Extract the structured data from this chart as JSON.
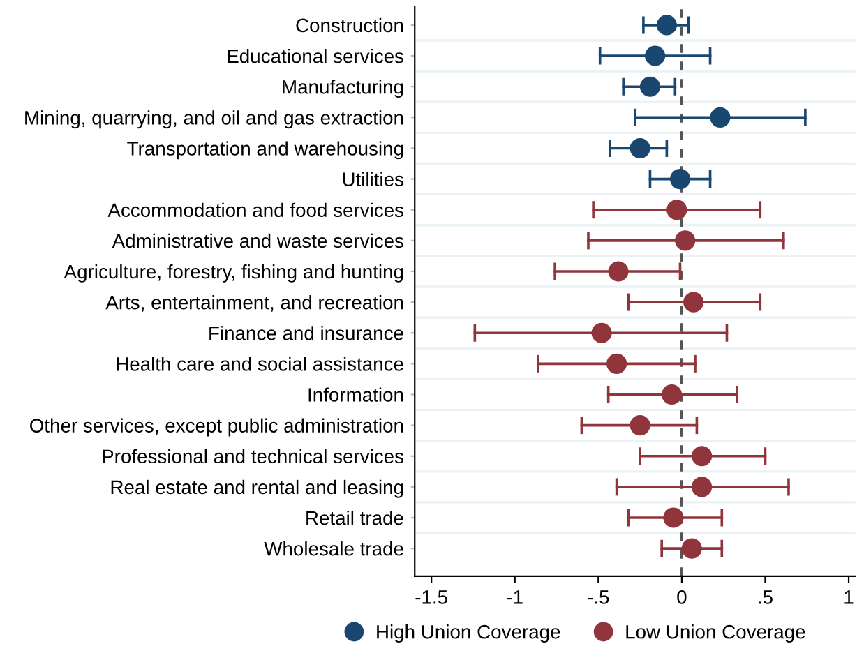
{
  "chart_data": {
    "type": "scatter",
    "orientation": "horizontal",
    "categories": [
      "Construction",
      "Educational services",
      "Manufacturing",
      "Mining, quarrying, and oil and gas extraction",
      "Transportation and warehousing",
      "Utilities",
      "Accommodation and food services",
      "Administrative and waste services",
      "Agriculture, forestry, fishing and hunting",
      "Arts, entertainment, and recreation",
      "Finance and insurance",
      "Health care and social assistance",
      "Information",
      "Other services, except public administration",
      "Professional and technical services",
      "Real estate and rental and leasing",
      "Retail trade",
      "Wholesale trade"
    ],
    "series": [
      {
        "name": "High Union Coverage",
        "color": "#1a476f",
        "values": [
          -0.09,
          -0.16,
          -0.19,
          0.23,
          -0.25,
          -0.01,
          null,
          null,
          null,
          null,
          null,
          null,
          null,
          null,
          null,
          null,
          null,
          null
        ],
        "errors": [
          [
            -0.23,
            0.04
          ],
          [
            -0.49,
            0.17
          ],
          [
            -0.35,
            -0.04
          ],
          [
            -0.28,
            0.74
          ],
          [
            -0.43,
            -0.09
          ],
          [
            -0.19,
            0.17
          ],
          null,
          null,
          null,
          null,
          null,
          null,
          null,
          null,
          null,
          null,
          null,
          null
        ]
      },
      {
        "name": "Low Union Coverage",
        "color": "#90353b",
        "values": [
          null,
          null,
          null,
          null,
          null,
          null,
          -0.03,
          0.02,
          -0.38,
          0.07,
          -0.48,
          -0.39,
          -0.06,
          -0.25,
          0.12,
          0.12,
          -0.05,
          0.06
        ],
        "errors": [
          null,
          null,
          null,
          null,
          null,
          null,
          [
            -0.53,
            0.47
          ],
          [
            -0.56,
            0.61
          ],
          [
            -0.76,
            -0.01
          ],
          [
            -0.32,
            0.47
          ],
          [
            -1.24,
            0.27
          ],
          [
            -0.86,
            0.08
          ],
          [
            -0.44,
            0.33
          ],
          [
            -0.6,
            0.09
          ],
          [
            -0.25,
            0.5
          ],
          [
            -0.39,
            0.64
          ],
          [
            -0.32,
            0.24
          ],
          [
            -0.12,
            0.24
          ]
        ]
      }
    ],
    "xlim": [
      -1.6,
      1.04
    ],
    "xticks": [
      {
        "value": -1.5,
        "label": "-1.5"
      },
      {
        "value": -1,
        "label": "-1"
      },
      {
        "value": -0.5,
        "label": "-.5"
      },
      0,
      {
        "value": 0.5,
        "label": ".5"
      },
      1
    ],
    "ref_lines": [
      {
        "axis": "x",
        "value": 0,
        "color": "#555555",
        "line_style": "dashed"
      }
    ],
    "grid": "y",
    "legend": "bottom",
    "marker": "circle"
  }
}
